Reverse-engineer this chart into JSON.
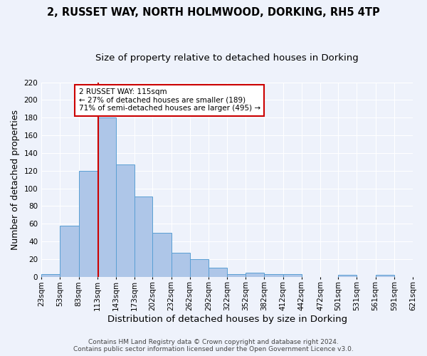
{
  "title_line1": "2, RUSSET WAY, NORTH HOLMWOOD, DORKING, RH5 4TP",
  "title_line2": "Size of property relative to detached houses in Dorking",
  "xlabel": "Distribution of detached houses by size in Dorking",
  "ylabel": "Number of detached properties",
  "bin_starts": [
    23,
    53,
    83,
    113,
    143,
    173,
    202,
    232,
    262,
    292,
    322,
    352,
    382,
    412,
    442,
    472,
    501,
    531,
    561,
    591,
    621
  ],
  "bar_heights": [
    3,
    58,
    120,
    180,
    127,
    91,
    50,
    27,
    20,
    10,
    3,
    5,
    3,
    3,
    0,
    0,
    2,
    0,
    2,
    0
  ],
  "bar_color": "#aec6e8",
  "bar_edge_color": "#5a9fd4",
  "property_size": 115,
  "vline_color": "#cc0000",
  "annotation_text": "2 RUSSET WAY: 115sqm\n← 27% of detached houses are smaller (189)\n71% of semi-detached houses are larger (495) →",
  "annotation_box_color": "#ffffff",
  "annotation_box_edge": "#cc0000",
  "ylim": [
    0,
    220
  ],
  "yticks": [
    0,
    20,
    40,
    60,
    80,
    100,
    120,
    140,
    160,
    180,
    200,
    220
  ],
  "footer_line1": "Contains HM Land Registry data © Crown copyright and database right 2024.",
  "footer_line2": "Contains public sector information licensed under the Open Government Licence v3.0.",
  "background_color": "#eef2fb",
  "grid_color": "#ffffff",
  "title_fontsize": 10.5,
  "subtitle_fontsize": 9.5,
  "axis_label_fontsize": 9,
  "tick_fontsize": 7.5,
  "annotation_fontsize": 7.5,
  "footer_fontsize": 6.5
}
